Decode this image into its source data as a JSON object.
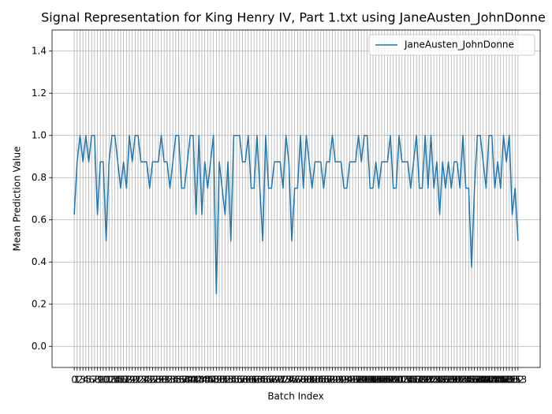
{
  "chart_data": {
    "type": "line",
    "title": "Signal Representation for King Henry IV, Part 1.txt using JaneAusten_JohnDonne",
    "xlabel": "Batch Index",
    "ylabel": "Mean Prediction Value",
    "x": [
      0,
      1,
      2,
      3,
      4,
      5,
      6,
      7,
      8,
      9,
      10,
      11,
      12,
      13,
      14,
      15,
      16,
      17,
      18,
      19,
      20,
      21,
      22,
      23,
      24,
      25,
      26,
      27,
      28,
      29,
      30,
      31,
      32,
      33,
      34,
      35,
      36,
      37,
      38,
      39,
      40,
      41,
      42,
      43,
      44,
      45,
      46,
      47,
      48,
      49,
      50,
      51,
      52,
      53,
      54,
      55,
      56,
      57,
      58,
      59,
      60,
      61,
      62,
      63,
      64,
      65,
      66,
      67,
      68,
      69,
      70,
      71,
      72,
      73,
      74,
      75,
      76,
      77,
      78,
      79,
      80,
      81,
      82,
      83,
      84,
      85,
      86,
      87,
      88,
      89,
      90,
      91,
      92,
      93,
      94,
      95,
      96,
      97,
      98,
      99,
      100,
      101,
      102,
      103,
      104,
      105,
      106,
      107,
      108,
      109,
      110,
      111,
      112,
      113,
      114,
      115,
      116,
      117,
      118,
      119,
      120,
      121,
      122,
      123,
      124,
      125,
      126,
      127,
      128,
      129,
      130,
      131,
      132,
      133,
      134,
      135,
      136,
      137,
      138,
      139,
      140,
      141,
      142,
      143,
      144,
      145,
      146,
      147,
      148,
      149,
      150,
      151,
      152,
      153
    ],
    "series": [
      {
        "name": "JaneAusten_JohnDonne",
        "color": "#1f77b4",
        "values": [
          0.625,
          0.875,
          1,
          0.875,
          1,
          0.875,
          1,
          1,
          0.625,
          0.875,
          0.875,
          0.5,
          0.875,
          1,
          1,
          0.875,
          0.75,
          0.875,
          0.75,
          1,
          0.875,
          1,
          1,
          0.875,
          0.875,
          0.875,
          0.75,
          0.875,
          0.875,
          0.875,
          1,
          0.875,
          0.875,
          0.75,
          0.875,
          1,
          1,
          0.75,
          0.75,
          0.875,
          1,
          1,
          0.625,
          1,
          0.625,
          0.875,
          0.75,
          0.875,
          1,
          0.25,
          0.875,
          0.75,
          0.625,
          0.875,
          0.5,
          1,
          1,
          1,
          0.875,
          0.875,
          1,
          0.75,
          0.75,
          1,
          0.75,
          0.5,
          1,
          0.75,
          0.75,
          0.875,
          0.875,
          0.875,
          0.75,
          1,
          0.875,
          0.5,
          0.75,
          0.75,
          1,
          0.75,
          1,
          0.875,
          0.75,
          0.875,
          0.875,
          0.875,
          0.75,
          0.875,
          0.875,
          1,
          0.875,
          0.875,
          0.875,
          0.75,
          0.75,
          0.875,
          0.875,
          0.875,
          1,
          0.875,
          1,
          1,
          0.75,
          0.75,
          0.875,
          0.75,
          0.875,
          0.875,
          0.875,
          1,
          0.75,
          0.75,
          1,
          0.875,
          0.875,
          0.875,
          0.75,
          0.875,
          1,
          0.75,
          0.75,
          1,
          0.75,
          1,
          0.75,
          0.875,
          0.625,
          0.875,
          0.75,
          0.875,
          0.75,
          0.875,
          0.875,
          0.75,
          1,
          0.75,
          0.75,
          0.375,
          0.75,
          1,
          1,
          0.875,
          0.75,
          1,
          1,
          0.75,
          0.875,
          0.75,
          1,
          0.875,
          1,
          0.625,
          0.75,
          0.5
        ]
      }
    ],
    "xlim": [
      -7.65,
      160.65
    ],
    "xticks": [
      0,
      1,
      2,
      3,
      4,
      5,
      6,
      7,
      8,
      9,
      10,
      11,
      12,
      13,
      14,
      15,
      16,
      17,
      18,
      19,
      20,
      21,
      22,
      23,
      24,
      25,
      26,
      27,
      28,
      29,
      30,
      31,
      32,
      33,
      34,
      35,
      36,
      37,
      38,
      39,
      40,
      41,
      42,
      43,
      44,
      45,
      46,
      47,
      48,
      49,
      50,
      51,
      52,
      53,
      54,
      55,
      56,
      57,
      58,
      59,
      60,
      61,
      62,
      63,
      64,
      65,
      66,
      67,
      68,
      69,
      70,
      71,
      72,
      73,
      74,
      75,
      76,
      77,
      78,
      79,
      80,
      81,
      82,
      83,
      84,
      85,
      86,
      87,
      88,
      89,
      90,
      91,
      92,
      93,
      94,
      95,
      96,
      97,
      98,
      99,
      100,
      101,
      102,
      103,
      104,
      105,
      106,
      107,
      108,
      109,
      110,
      111,
      112,
      113,
      114,
      115,
      116,
      117,
      118,
      119,
      120,
      121,
      122,
      123,
      124,
      125,
      126,
      127,
      128,
      129,
      130,
      131,
      132,
      133,
      134,
      135,
      136,
      137,
      138,
      139,
      140,
      141,
      142,
      143,
      144,
      145,
      146,
      147,
      148,
      149,
      150,
      151,
      152,
      153
    ],
    "ylim": [
      -0.1,
      1.5
    ],
    "yticks": [
      {
        "value": 0,
        "label": "0.0"
      },
      {
        "value": 0.2,
        "label": "0.2"
      },
      {
        "value": 0.4,
        "label": "0.4"
      },
      {
        "value": 0.6,
        "label": "0.6"
      },
      {
        "value": 0.8,
        "label": "0.8"
      },
      {
        "value": 1,
        "label": "1.0"
      },
      {
        "value": 1.2,
        "label": "1.2"
      },
      {
        "value": 1.4,
        "label": "1.4"
      }
    ],
    "grid": true,
    "legend": "upper right"
  }
}
